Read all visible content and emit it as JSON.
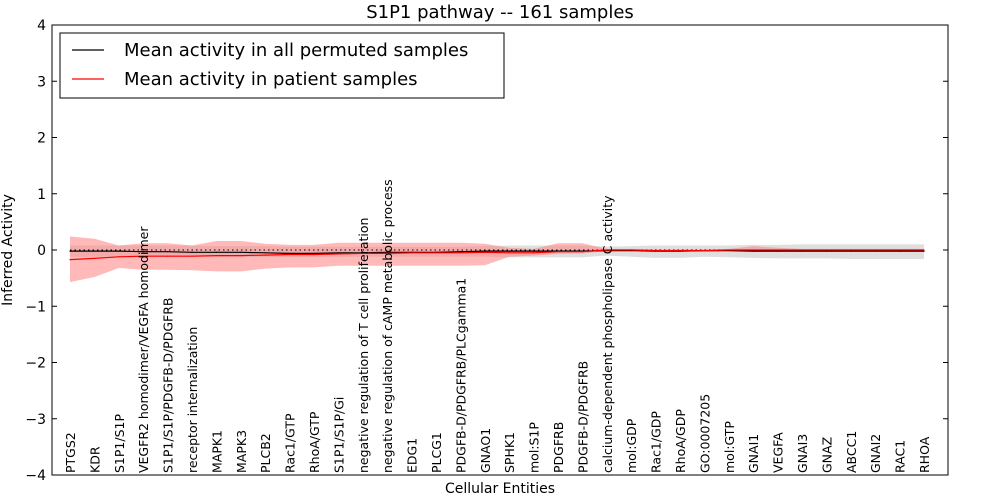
{
  "chart_data": {
    "type": "line",
    "title": "S1P1 pathway -- 161 samples",
    "xlabel": "Cellular Entities",
    "ylabel": "Inferred Activity",
    "ylim": [
      -4,
      4
    ],
    "yticks": [
      4,
      3,
      2,
      1,
      0,
      -1,
      -2,
      -3,
      -4
    ],
    "ytick_labels": [
      "4",
      "3",
      "2",
      "1",
      "0",
      "−1",
      "−2",
      "−3",
      "−4"
    ],
    "legend_position": "top-left",
    "categories": [
      "PTGS2",
      "KDR",
      "S1P1/S1P",
      "VEGFR2 homodimer/VEGFA homodimer",
      "S1P1/S1P/PDGFB-D/PDGFRB",
      "receptor internalization",
      "MAPK1",
      "MAPK3",
      "PLCB2",
      "Rac1/GTP",
      "RhoA/GTP",
      "S1P1/S1P/Gi",
      "negative regulation of T cell proliferation",
      "negative regulation of cAMP metabolic process",
      "EDG1",
      "PLCG1",
      "PDGFB-D/PDGFRB/PLCgamma1",
      "GNAO1",
      "SPHK1",
      "mol:S1P",
      "PDGFRB",
      "PDGFB-D/PDGFRB",
      "calcium-dependent phospholipase C activity",
      "mol:GDP",
      "Rac1/GDP",
      "RhoA/GDP",
      "GO:0007205",
      "mol:GTP",
      "GNAI1",
      "VEGFA",
      "GNAI3",
      "GNAZ",
      "ABCC1",
      "GNAI2",
      "RAC1",
      "RHOA"
    ],
    "series": [
      {
        "name": "Mean activity in all permuted samples",
        "color": "#000000",
        "values": [
          -0.02,
          -0.02,
          -0.02,
          -0.03,
          -0.03,
          -0.04,
          -0.04,
          -0.04,
          -0.05,
          -0.06,
          -0.06,
          -0.05,
          -0.05,
          -0.04,
          -0.04,
          -0.04,
          -0.03,
          -0.02,
          -0.02,
          -0.02,
          -0.02,
          -0.02,
          -0.01,
          -0.01,
          -0.02,
          -0.02,
          -0.01,
          -0.01,
          -0.02,
          -0.02,
          -0.02,
          -0.02,
          -0.02,
          -0.02,
          -0.02,
          -0.02
        ],
        "lower": [
          -0.12,
          -0.12,
          -0.12,
          -0.12,
          -0.12,
          -0.12,
          -0.13,
          -0.13,
          -0.13,
          -0.13,
          -0.13,
          -0.13,
          -0.12,
          -0.12,
          -0.12,
          -0.12,
          -0.12,
          -0.12,
          -0.13,
          -0.13,
          -0.13,
          -0.13,
          -0.1,
          -0.12,
          -0.14,
          -0.14,
          -0.12,
          -0.13,
          -0.14,
          -0.15,
          -0.15,
          -0.15,
          -0.16,
          -0.16,
          -0.16,
          -0.16
        ],
        "upper": [
          0.08,
          0.08,
          0.08,
          0.08,
          0.08,
          0.08,
          0.07,
          0.07,
          0.07,
          0.06,
          0.06,
          0.06,
          0.06,
          0.06,
          0.06,
          0.06,
          0.06,
          0.07,
          0.08,
          0.08,
          0.08,
          0.08,
          0.06,
          0.07,
          0.08,
          0.08,
          0.08,
          0.08,
          0.09,
          0.09,
          0.1,
          0.1,
          0.1,
          0.1,
          0.1,
          0.1
        ]
      },
      {
        "name": "Mean activity in patient samples",
        "color": "#ff0000",
        "values": [
          -0.17,
          -0.15,
          -0.12,
          -0.11,
          -0.11,
          -0.11,
          -0.1,
          -0.1,
          -0.09,
          -0.08,
          -0.08,
          -0.07,
          -0.06,
          -0.06,
          -0.05,
          -0.05,
          -0.05,
          -0.04,
          -0.05,
          -0.05,
          -0.03,
          -0.03,
          0.0,
          0.0,
          -0.01,
          -0.01,
          -0.01,
          0.0,
          0.0,
          0.0,
          0.0,
          0.0,
          0.0,
          0.0,
          0.0,
          0.0
        ],
        "lower": [
          -0.57,
          -0.48,
          -0.32,
          -0.35,
          -0.35,
          -0.36,
          -0.38,
          -0.38,
          -0.33,
          -0.31,
          -0.31,
          -0.28,
          -0.28,
          -0.28,
          -0.28,
          -0.28,
          -0.28,
          -0.27,
          -0.12,
          -0.1,
          -0.07,
          -0.06,
          -0.02,
          -0.02,
          -0.03,
          -0.03,
          -0.02,
          -0.02,
          -0.03,
          -0.03,
          -0.02,
          -0.02,
          -0.02,
          -0.02,
          -0.02,
          -0.02
        ],
        "upper": [
          0.24,
          0.2,
          0.08,
          0.12,
          0.12,
          0.08,
          0.16,
          0.16,
          0.11,
          0.09,
          0.09,
          0.13,
          0.13,
          0.13,
          0.13,
          0.13,
          0.13,
          0.11,
          0.04,
          0.02,
          0.12,
          0.12,
          0.02,
          0.02,
          0.01,
          0.01,
          0.01,
          0.02,
          0.07,
          0.04,
          0.02,
          0.02,
          0.02,
          0.02,
          0.02,
          0.02
        ]
      }
    ],
    "permuted_band_color": "#d9d9d9",
    "patient_band_color": "#ff7f7f",
    "zero_line": "dotted"
  }
}
